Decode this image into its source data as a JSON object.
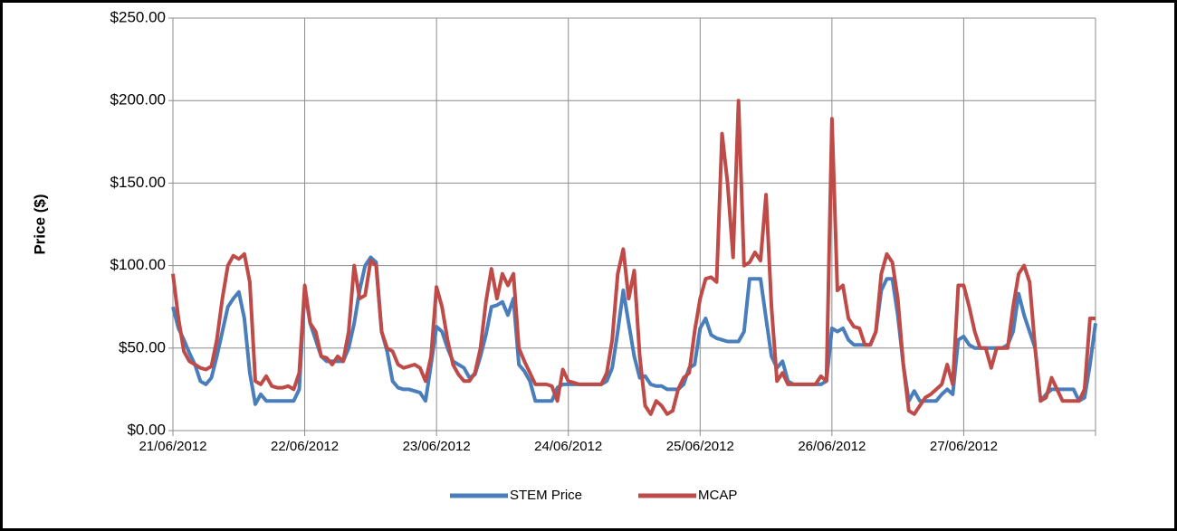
{
  "chart_data": {
    "type": "line",
    "y_label": "Price ($)",
    "categories": [
      "21/06/2012",
      null,
      null,
      null,
      null,
      null,
      null,
      null,
      null,
      null,
      null,
      null,
      null,
      null,
      null,
      null,
      null,
      null,
      null,
      null,
      null,
      null,
      null,
      null,
      "22/06/2012",
      null,
      null,
      null,
      null,
      null,
      null,
      null,
      null,
      null,
      null,
      null,
      null,
      null,
      null,
      null,
      null,
      null,
      null,
      null,
      null,
      null,
      null,
      null,
      "23/06/2012",
      null,
      null,
      null,
      null,
      null,
      null,
      null,
      null,
      null,
      null,
      null,
      null,
      null,
      null,
      null,
      null,
      null,
      null,
      null,
      null,
      null,
      null,
      null,
      "24/06/2012",
      null,
      null,
      null,
      null,
      null,
      null,
      null,
      null,
      null,
      null,
      null,
      null,
      null,
      null,
      null,
      null,
      null,
      null,
      null,
      null,
      null,
      null,
      null,
      "25/06/2012",
      null,
      null,
      null,
      null,
      null,
      null,
      null,
      null,
      null,
      null,
      null,
      null,
      null,
      null,
      null,
      null,
      null,
      null,
      null,
      null,
      null,
      null,
      null,
      "26/06/2012",
      null,
      null,
      null,
      null,
      null,
      null,
      null,
      null,
      null,
      null,
      null,
      null,
      null,
      null,
      null,
      null,
      null,
      null,
      null,
      null,
      null,
      null,
      null,
      "27/06/2012",
      null,
      null,
      null,
      null,
      null,
      null,
      null,
      null,
      null,
      null,
      null,
      null,
      null,
      null,
      null,
      null,
      null,
      null,
      null,
      null,
      null,
      null,
      null,
      null
    ],
    "series": [
      {
        "name": "STEM Price",
        "color": "#4a7ebb",
        "values": [
          75,
          62,
          55,
          47,
          40,
          30,
          28,
          32,
          45,
          60,
          75,
          80,
          84,
          68,
          35,
          16,
          22,
          18,
          18,
          18,
          18,
          18,
          18,
          25,
          85,
          65,
          55,
          45,
          42,
          42,
          42,
          42,
          50,
          65,
          85,
          100,
          105,
          102,
          60,
          48,
          30,
          26,
          25,
          25,
          24,
          23,
          18,
          40,
          63,
          60,
          50,
          42,
          40,
          38,
          32,
          34,
          45,
          58,
          75,
          76,
          78,
          70,
          80,
          40,
          36,
          30,
          18,
          18,
          18,
          18,
          26,
          28,
          28,
          28,
          28,
          28,
          28,
          28,
          28,
          30,
          38,
          60,
          85,
          65,
          45,
          32,
          33,
          28,
          27,
          27,
          25,
          25,
          25,
          28,
          38,
          40,
          62,
          68,
          58,
          56,
          55,
          54,
          54,
          54,
          60,
          92,
          92,
          92,
          68,
          45,
          38,
          42,
          30,
          28,
          28,
          28,
          28,
          28,
          28,
          30,
          62,
          60,
          62,
          55,
          52,
          52,
          52,
          52,
          60,
          85,
          92,
          92,
          70,
          40,
          18,
          24,
          18,
          18,
          18,
          18,
          22,
          25,
          22,
          55,
          57,
          52,
          50,
          50,
          50,
          50,
          50,
          50,
          52,
          60,
          83,
          70,
          60,
          50,
          18,
          22,
          25,
          25,
          25,
          25,
          25,
          18,
          20,
          40,
          65
        ]
      },
      {
        "name": "MCAP",
        "color": "#be4b48",
        "values": [
          95,
          68,
          48,
          42,
          40,
          38,
          37,
          39,
          55,
          80,
          100,
          106,
          104,
          107,
          90,
          30,
          28,
          33,
          27,
          26,
          26,
          27,
          25,
          35,
          88,
          65,
          60,
          45,
          44,
          40,
          45,
          42,
          60,
          100,
          80,
          82,
          103,
          100,
          60,
          50,
          48,
          40,
          38,
          39,
          40,
          38,
          30,
          45,
          87,
          75,
          55,
          40,
          34,
          30,
          30,
          35,
          50,
          78,
          98,
          80,
          95,
          88,
          95,
          50,
          42,
          35,
          28,
          28,
          28,
          27,
          18,
          37,
          30,
          29,
          28,
          28,
          28,
          28,
          28,
          35,
          55,
          95,
          110,
          80,
          97,
          45,
          15,
          10,
          18,
          15,
          10,
          12,
          25,
          32,
          35,
          60,
          80,
          92,
          93,
          90,
          180,
          150,
          105,
          200,
          100,
          102,
          108,
          103,
          143,
          75,
          30,
          35,
          28,
          28,
          28,
          28,
          28,
          28,
          33,
          30,
          189,
          85,
          88,
          68,
          63,
          62,
          52,
          52,
          60,
          95,
          107,
          102,
          80,
          40,
          12,
          10,
          15,
          20,
          22,
          25,
          28,
          40,
          28,
          88,
          88,
          75,
          60,
          50,
          50,
          38,
          50,
          50,
          50,
          75,
          95,
          100,
          90,
          50,
          18,
          20,
          32,
          25,
          18,
          18,
          18,
          18,
          25,
          68,
          68
        ]
      }
    ],
    "ylim": [
      0,
      250
    ],
    "yticks": [
      {
        "value": 0,
        "label": "$0.00"
      },
      {
        "value": 50,
        "label": "$50.00"
      },
      {
        "value": 100,
        "label": "$100.00"
      },
      {
        "value": 150,
        "label": "$150.00"
      },
      {
        "value": 200,
        "label": "$200.00"
      },
      {
        "value": 250,
        "label": "$250.00"
      }
    ],
    "grid": true,
    "legend": "bottom"
  }
}
